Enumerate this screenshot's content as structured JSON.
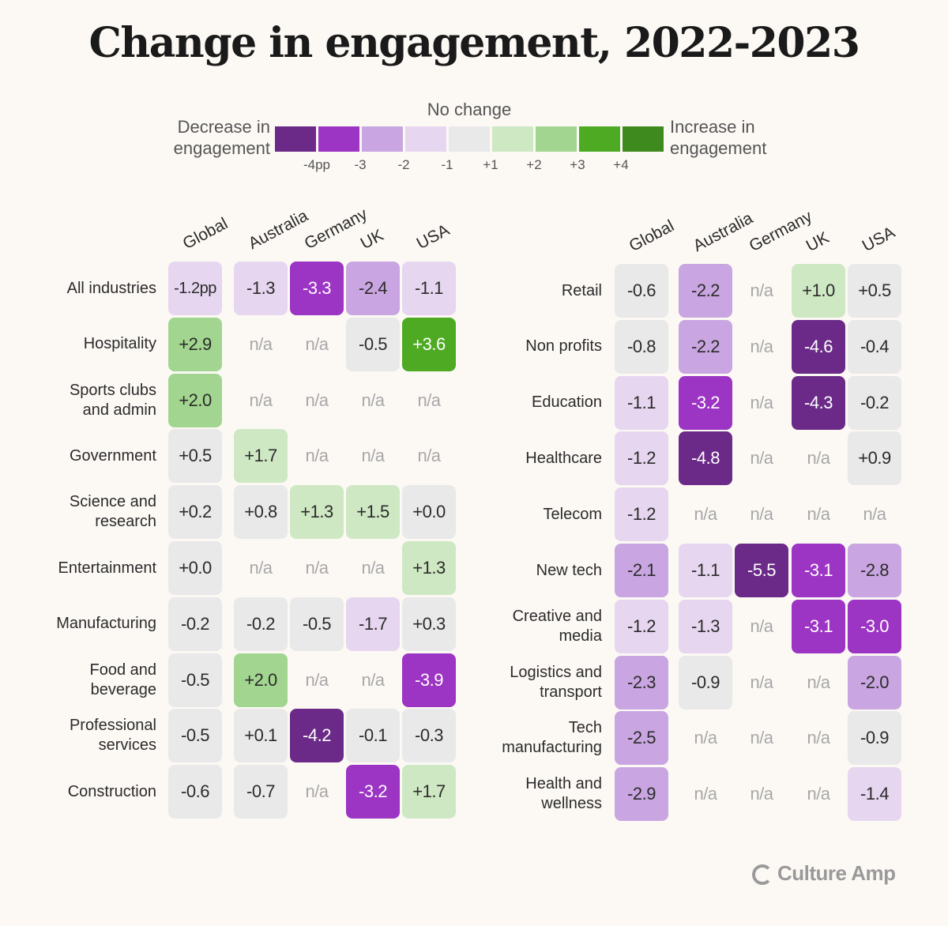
{
  "chart_data": {
    "type": "heatmap",
    "title": "Change in engagement, 2022-2023",
    "legend": {
      "decrease_label": "Decrease in engagement",
      "center_label": "No change",
      "increase_label": "Increase in engagement",
      "ticks": [
        "-4pp",
        "-3",
        "-2",
        "-1",
        "+1",
        "+2",
        "+3",
        "+4"
      ],
      "colors": [
        "#6b2a88",
        "#9c34c4",
        "#c9a6e1",
        "#e6d6f0",
        "#e9e9e9",
        "#cfe8c4",
        "#a2d58f",
        "#4faa23",
        "#3f8a1e"
      ]
    },
    "columns": [
      "Global",
      "Australia",
      "Germany",
      "UK",
      "USA"
    ],
    "panels": [
      {
        "rows": [
          {
            "label": "All industries",
            "values": [
              "-1.2pp",
              "-1.3",
              "-3.3",
              "-2.4",
              "-1.1"
            ]
          },
          {
            "label": "Hospitality",
            "values": [
              "+2.9",
              "n/a",
              "n/a",
              "-0.5",
              "+3.6"
            ]
          },
          {
            "label": "Sports clubs\nand admin",
            "values": [
              "+2.0",
              "n/a",
              "n/a",
              "n/a",
              "n/a"
            ]
          },
          {
            "label": "Government",
            "values": [
              "+0.5",
              "+1.7",
              "n/a",
              "n/a",
              "n/a"
            ]
          },
          {
            "label": "Science and\nresearch",
            "values": [
              "+0.2",
              "+0.8",
              "+1.3",
              "+1.5",
              "+0.0"
            ]
          },
          {
            "label": "Entertainment",
            "values": [
              "+0.0",
              "n/a",
              "n/a",
              "n/a",
              "+1.3"
            ]
          },
          {
            "label": "Manufacturing",
            "values": [
              "-0.2",
              "-0.2",
              "-0.5",
              "-1.7",
              "+0.3"
            ]
          },
          {
            "label": "Food and\nbeverage",
            "values": [
              "-0.5",
              "+2.0",
              "n/a",
              "n/a",
              "-3.9"
            ]
          },
          {
            "label": "Professional\nservices",
            "values": [
              "-0.5",
              "+0.1",
              "-4.2",
              "-0.1",
              "-0.3"
            ]
          },
          {
            "label": "Construction",
            "values": [
              "-0.6",
              "-0.7",
              "n/a",
              "-3.2",
              "+1.7"
            ]
          }
        ]
      },
      {
        "rows": [
          {
            "label": "Retail",
            "values": [
              "-0.6",
              "-2.2",
              "n/a",
              "+1.0",
              "+0.5"
            ]
          },
          {
            "label": "Non profits",
            "values": [
              "-0.8",
              "-2.2",
              "n/a",
              "-4.6",
              "-0.4"
            ]
          },
          {
            "label": "Education",
            "values": [
              "-1.1",
              "-3.2",
              "n/a",
              "-4.3",
              "-0.2"
            ]
          },
          {
            "label": "Healthcare",
            "values": [
              "-1.2",
              "-4.8",
              "n/a",
              "n/a",
              "+0.9"
            ]
          },
          {
            "label": "Telecom",
            "values": [
              "-1.2",
              "n/a",
              "n/a",
              "n/a",
              "n/a"
            ]
          },
          {
            "label": "New tech",
            "values": [
              "-2.1",
              "-1.1",
              "-5.5",
              "-3.1",
              "-2.8"
            ]
          },
          {
            "label": "Creative and\nmedia",
            "values": [
              "-1.2",
              "-1.3",
              "n/a",
              "-3.1",
              "-3.0"
            ]
          },
          {
            "label": "Logistics and\ntransport",
            "values": [
              "-2.3",
              "-0.9",
              "n/a",
              "n/a",
              "-2.0"
            ]
          },
          {
            "label": "Tech\nmanufacturing",
            "values": [
              "-2.5",
              "n/a",
              "n/a",
              "n/a",
              "-0.9"
            ]
          },
          {
            "label": "Health and\nwellness",
            "values": [
              "-2.9",
              "n/a",
              "n/a",
              "n/a",
              "-1.4"
            ]
          }
        ]
      }
    ]
  },
  "brand": {
    "name": "Culture Amp",
    "icon": "culture-amp-logo-icon"
  }
}
